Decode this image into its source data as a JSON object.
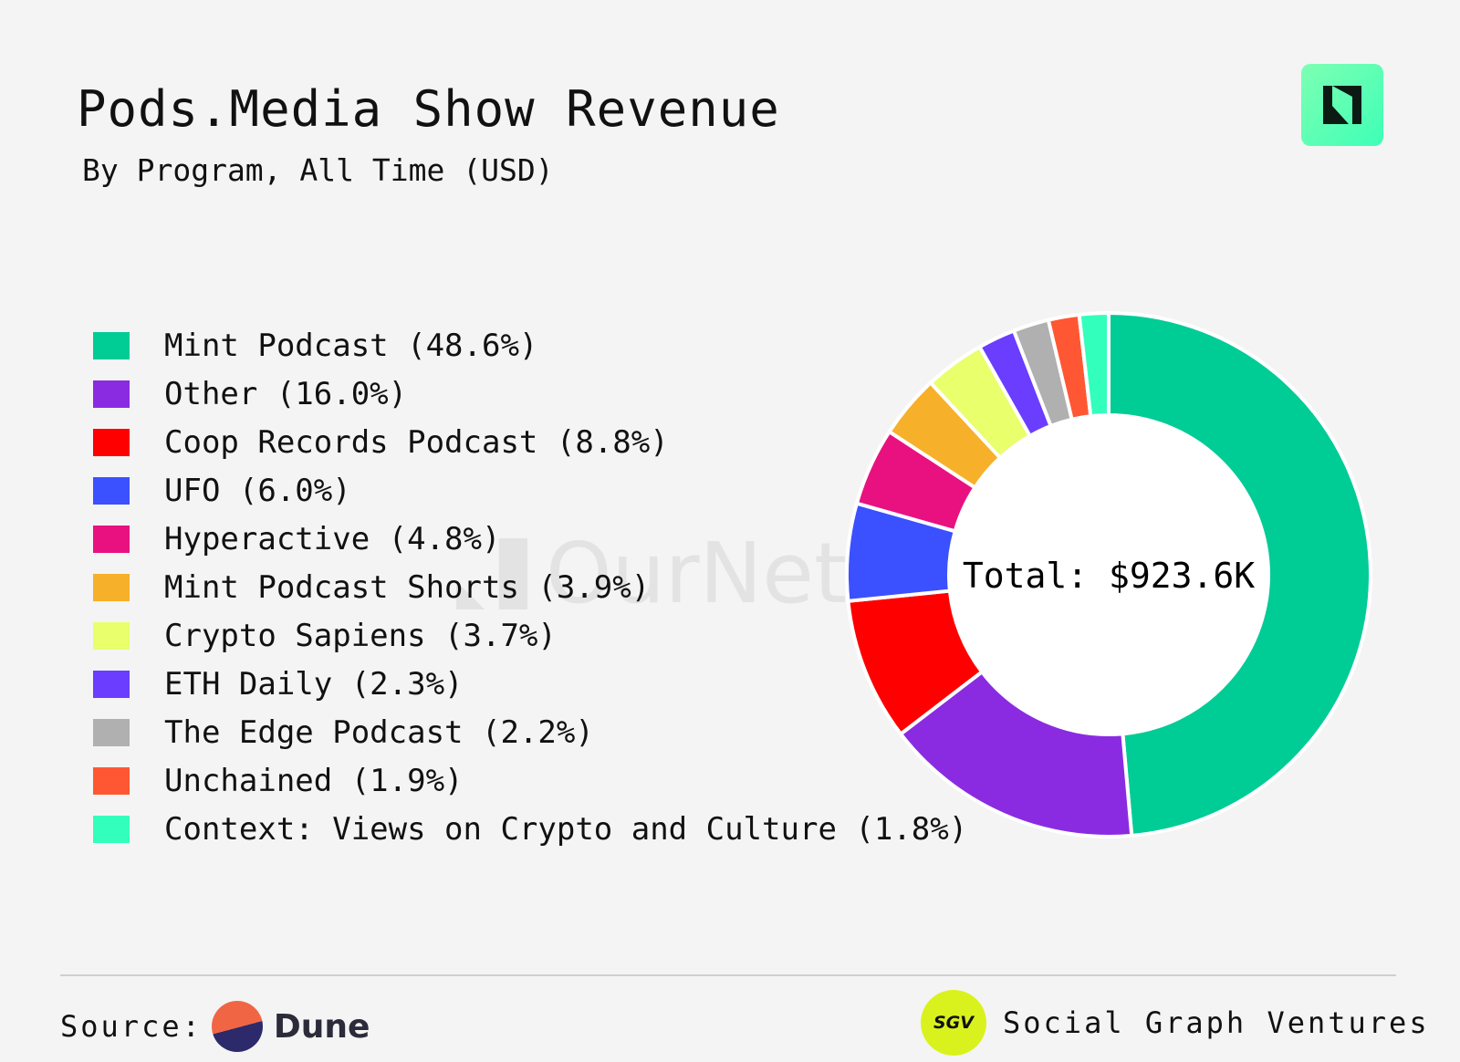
{
  "header": {
    "title": "Pods.Media Show Revenue",
    "subtitle": "By Program, All Time (USD)"
  },
  "watermark": "OurNetwork",
  "chart_data": {
    "type": "pie",
    "variant": "donut",
    "title": "Pods.Media Show Revenue",
    "subtitle": "By Program, All Time (USD)",
    "center_label": "Total: $923.6K",
    "total_usd": 923600,
    "legend_position": "left",
    "slices": [
      {
        "name": "Mint Podcast",
        "percent": 48.6,
        "label": "Mint Podcast (48.6%)",
        "color": "#00cc96"
      },
      {
        "name": "Other",
        "percent": 16.0,
        "label": "Other (16.0%)",
        "color": "#8a2be2"
      },
      {
        "name": "Coop Records Podcast",
        "percent": 8.8,
        "label": "Coop Records Podcast (8.8%)",
        "color": "#ff0000"
      },
      {
        "name": "UFO",
        "percent": 6.0,
        "label": "UFO (6.0%)",
        "color": "#3b50ff"
      },
      {
        "name": "Hyperactive",
        "percent": 4.8,
        "label": "Hyperactive (4.8%)",
        "color": "#e8117f"
      },
      {
        "name": "Mint Podcast Shorts",
        "percent": 3.9,
        "label": "Mint Podcast Shorts (3.9%)",
        "color": "#f7b02a"
      },
      {
        "name": "Crypto Sapiens",
        "percent": 3.7,
        "label": "Crypto Sapiens (3.7%)",
        "color": "#e9ff6b"
      },
      {
        "name": "ETH Daily",
        "percent": 2.3,
        "label": "ETH Daily (2.3%)",
        "color": "#6a3dff"
      },
      {
        "name": "The Edge Podcast",
        "percent": 2.2,
        "label": "The Edge Podcast (2.2%)",
        "color": "#b0b0b0"
      },
      {
        "name": "Unchained",
        "percent": 1.9,
        "label": "Unchained (1.9%)",
        "color": "#ff5733"
      },
      {
        "name": "Context: Views on Crypto and Culture",
        "percent": 1.8,
        "label": "Context: Views on Crypto and Culture (1.8%)",
        "color": "#33ffbd"
      }
    ]
  },
  "footer": {
    "source_label": "Source:",
    "source_name": "Dune",
    "sgv_badge": "SGV",
    "org_name": "Social Graph Ventures"
  }
}
